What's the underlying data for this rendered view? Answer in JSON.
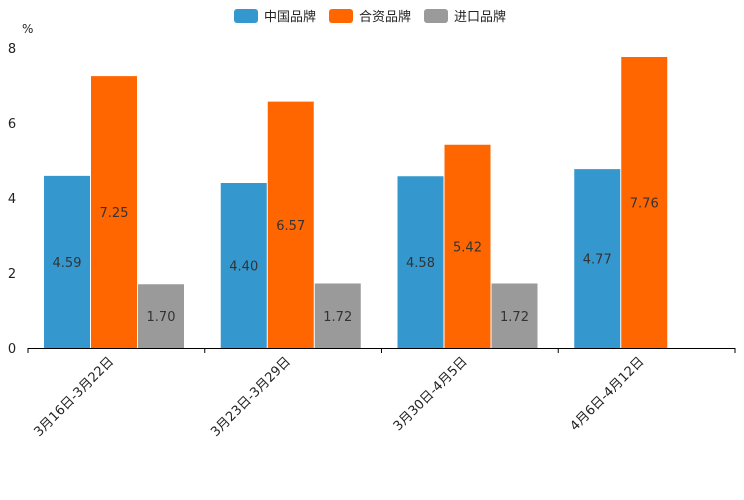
{
  "chart_data": {
    "type": "bar",
    "title": "",
    "xlabel": "",
    "ylabel": "%",
    "ylim": [
      0,
      8
    ],
    "yticks": [
      0,
      2,
      4,
      6,
      8
    ],
    "grid": false,
    "legend_position": "top-center",
    "categories": [
      "3月16日-3月22日",
      "3月23日-3月29日",
      "3月30日-4月5日",
      "4月6日-4月12日"
    ],
    "series": [
      {
        "name": "中国品牌",
        "color": "#3498cf",
        "values": [
          4.59,
          4.4,
          4.58,
          4.77
        ],
        "labels": [
          "4.59",
          "4.40",
          "4.58",
          "4.77"
        ]
      },
      {
        "name": "合资品牌",
        "color": "#ff6600",
        "values": [
          7.25,
          6.57,
          5.42,
          7.76
        ],
        "labels": [
          "7.25",
          "6.57",
          "5.42",
          "7.76"
        ]
      },
      {
        "name": "进口品牌",
        "color": "#9a9a9a",
        "values": [
          1.7,
          1.72,
          1.72,
          null
        ],
        "labels": [
          "1.70",
          "1.72",
          "1.72",
          null
        ]
      }
    ]
  }
}
